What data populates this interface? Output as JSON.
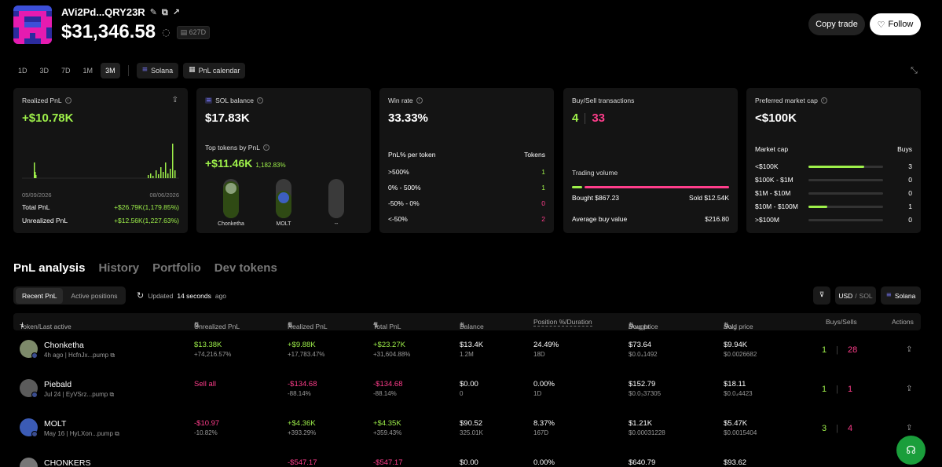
{
  "header": {
    "address": "AVi2Pd...QRY23R",
    "balance": "$31,346.58",
    "age_badge": "627D",
    "copy_trade": "Copy trade",
    "follow": "Follow"
  },
  "toolbar": {
    "timeframes": [
      "1D",
      "3D",
      "7D",
      "1M",
      "3M"
    ],
    "active_timeframe": "3M",
    "chain": "Solana",
    "calendar": "PnL calendar"
  },
  "realized_card": {
    "title": "Realized PnL",
    "value": "+$10.78K",
    "date_start": "05/09/2026",
    "date_end": "08/06/2026",
    "total_label": "Total PnL",
    "total_value": "+$26.79K(1,179.85%)",
    "unrealized_label": "Unrealized PnL",
    "unrealized_value": "+$12.56K(1,227.63%)"
  },
  "sol_card": {
    "title": "SOL balance",
    "value": "$17.83K",
    "top_title": "Top tokens by PnL",
    "top_value": "+$11.46K",
    "top_pct": "1,182.83%",
    "tokens": [
      {
        "name": "Chonketha",
        "level": 0.95
      },
      {
        "name": "MOLT",
        "level": 0.7
      },
      {
        "name": "--",
        "level": 0
      }
    ]
  },
  "winrate_card": {
    "title": "Win rate",
    "value": "33.33%",
    "col1": "PnL% per token",
    "col2": "Tokens",
    "rows": [
      {
        "label": ">500%",
        "value": "1"
      },
      {
        "label": "0% - 500%",
        "value": "1"
      },
      {
        "label": "-50% - 0%",
        "value": "0"
      },
      {
        "label": "<-50%",
        "value": "2"
      }
    ]
  },
  "buysell_card": {
    "title": "Buy/Sell transactions",
    "buys": "4",
    "sells": "33",
    "volume_label": "Trading volume",
    "bought_label": "Bought $867.23",
    "sold_label": "Sold $12.54K",
    "bought_fraction": 0.065,
    "avg_label": "Average buy value",
    "avg_value": "$216.80"
  },
  "mcap_card": {
    "title": "Preferred market cap",
    "value": "<$100K",
    "col1": "Market cap",
    "col2": "Buys",
    "rows": [
      {
        "label": "<$100K",
        "value": "3",
        "fill": 0.75
      },
      {
        "label": "$100K - $1M",
        "value": "0",
        "fill": 0
      },
      {
        "label": "$1M - $10M",
        "value": "0",
        "fill": 0
      },
      {
        "label": "$10M - $100M",
        "value": "1",
        "fill": 0.25
      },
      {
        "label": ">$100M",
        "value": "0",
        "fill": 0
      }
    ]
  },
  "tabs": [
    "PnL analysis",
    "History",
    "Portfolio",
    "Dev tokens"
  ],
  "subtabs": [
    "Recent PnL",
    "Active positions"
  ],
  "updated": {
    "prefix": "Updated",
    "bold": "14 seconds",
    "suffix": "ago"
  },
  "right_tools": {
    "usd": "USD",
    "slash": "/",
    "sol": "SOL",
    "chain": "Solana"
  },
  "table": {
    "headers": {
      "token": "Token/Last active",
      "unrealized": "Unrealized PnL",
      "realized": "Realized PnL",
      "total": "Total PnL",
      "balance": "Balance",
      "position": "Position %/Duration",
      "bought": "Bought",
      "bought_avg": "/Avg price",
      "sold": "Sold",
      "sold_avg": "/Avg price",
      "buys_sells": "Buys/Sells",
      "actions": "Actions"
    },
    "rows": [
      {
        "name": "Chonketha",
        "meta": "4h ago | HcfnJx...pump",
        "unreal": "$13.38K",
        "unreal_sub": "+74,216.57%",
        "real": "+$9.88K",
        "real_sub": "+17,783.47%",
        "total": "+$23.27K",
        "total_sub": "+31,604.88%",
        "bal": "$13.4K",
        "bal_sub": "1.2M",
        "pos": "24.49%",
        "pos_sub": "18D",
        "bought": "$73.64",
        "bought_sub": "$0.0₄1492",
        "sold": "$9.94K",
        "sold_sub": "$0.0026682",
        "buys": "1",
        "sells": "28",
        "unreal_color": "green",
        "real_color": "green",
        "total_color": "green"
      },
      {
        "name": "Piebald",
        "meta": "Jul 24 | EyVSrz...pump",
        "unreal": "Sell all",
        "unreal_sub": "",
        "real": "-$134.68",
        "real_sub": "-88.14%",
        "total": "-$134.68",
        "total_sub": "-88.14%",
        "bal": "$0.00",
        "bal_sub": "0",
        "pos": "0.00%",
        "pos_sub": "1D",
        "bought": "$152.79",
        "bought_sub": "$0.0₃37305",
        "sold": "$18.11",
        "sold_sub": "$0.0₄4423",
        "buys": "1",
        "sells": "1",
        "unreal_color": "pink",
        "real_color": "pink",
        "total_color": "pink"
      },
      {
        "name": "MOLT",
        "meta": "May 16 | HyLXon...pump",
        "unreal": "-$10.97",
        "unreal_sub": "-10.82%",
        "real": "+$4.36K",
        "real_sub": "+393.29%",
        "total": "+$4.35K",
        "total_sub": "+359.43%",
        "bal": "$90.52",
        "bal_sub": "325.01K",
        "pos": "8.37%",
        "pos_sub": "167D",
        "bought": "$1.21K",
        "bought_sub": "$0.00031228",
        "sold": "$5.47K",
        "sold_sub": "$0.0015404",
        "buys": "3",
        "sells": "4",
        "unreal_color": "pink",
        "real_color": "green",
        "total_color": "green"
      },
      {
        "name": "CHONKERS",
        "meta": "",
        "unreal": "",
        "unreal_sub": "",
        "real": "-$547.17",
        "real_sub": "",
        "total": "-$547.17",
        "total_sub": "",
        "bal": "$0.00",
        "bal_sub": "",
        "pos": "0.00%",
        "pos_sub": "",
        "bought": "$640.79",
        "bought_sub": "",
        "sold": "$93.62",
        "sold_sub": "",
        "buys": "",
        "sells": "",
        "unreal_color": "pink",
        "real_color": "pink",
        "total_color": "pink"
      }
    ]
  },
  "colors": {
    "green": "#9ef04a",
    "pink": "#ff3d8b",
    "card": "#141414"
  }
}
